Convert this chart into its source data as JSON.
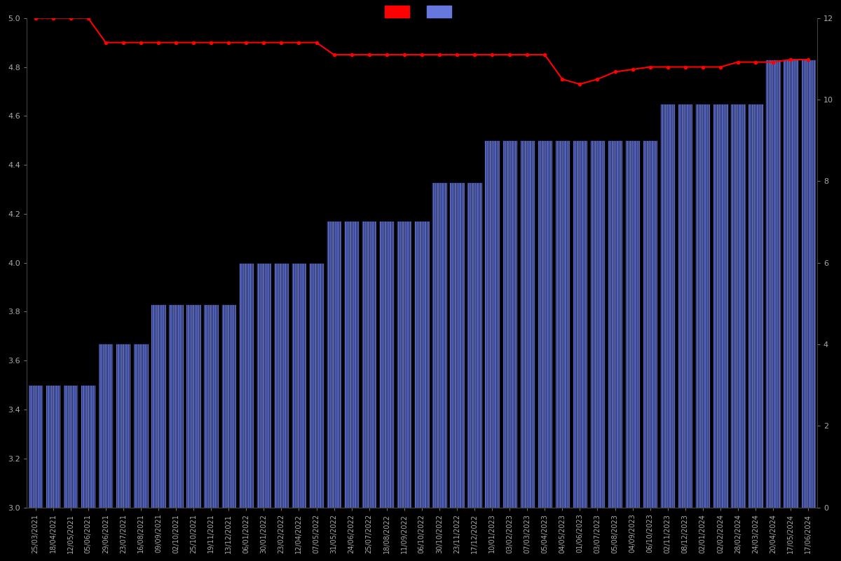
{
  "background_color": "#000000",
  "bar_color": "#6677dd",
  "bar_edgecolor": "#000000",
  "bar_hatch": "|||||||",
  "hatch_color": "#ffffff",
  "line_color": "#ff0000",
  "line_marker": "o",
  "line_markersize": 3,
  "line_linewidth": 1.5,
  "left_ylim": [
    3.0,
    5.0
  ],
  "right_ylim": [
    0,
    12
  ],
  "left_yticks": [
    3.0,
    3.2,
    3.4,
    3.6,
    3.8,
    4.0,
    4.2,
    4.4,
    4.6,
    4.8,
    5.0
  ],
  "right_yticks": [
    0,
    2,
    4,
    6,
    8,
    10,
    12
  ],
  "tick_color": "#aaaaaa",
  "tick_fontsize": 8,
  "dates": [
    "25/03/2021",
    "18/04/2021",
    "12/05/2021",
    "05/06/2021",
    "29/06/2021",
    "23/07/2021",
    "16/08/2021",
    "09/09/2021",
    "02/10/2021",
    "25/10/2021",
    "19/11/2021",
    "13/12/2021",
    "06/01/2022",
    "30/01/2022",
    "23/02/2022",
    "12/04/2022",
    "07/05/2022",
    "31/05/2022",
    "24/06/2022",
    "25/07/2022",
    "18/08/2022",
    "11/09/2022",
    "06/10/2022",
    "30/10/2022",
    "23/11/2022",
    "17/12/2022",
    "10/01/2023",
    "03/02/2023",
    "07/03/2023",
    "05/04/2023",
    "04/05/2023",
    "01/06/2023",
    "03/07/2023",
    "05/08/2023",
    "04/09/2023",
    "06/10/2023",
    "02/11/2023",
    "08/12/2023",
    "02/01/2024",
    "02/02/2024",
    "28/02/2024",
    "24/03/2024",
    "20/04/2024",
    "17/05/2024",
    "17/06/2024"
  ],
  "avg_ratings": [
    5.0,
    5.0,
    5.0,
    5.0,
    4.9,
    4.9,
    4.9,
    4.9,
    4.9,
    4.9,
    4.9,
    4.9,
    4.9,
    4.9,
    4.9,
    4.9,
    4.9,
    4.85,
    4.85,
    4.85,
    4.85,
    4.85,
    4.85,
    4.85,
    4.85,
    4.85,
    4.85,
    4.85,
    4.85,
    4.85,
    4.75,
    4.73,
    4.75,
    4.78,
    4.79,
    4.8,
    4.8,
    4.8,
    4.8,
    4.8,
    4.82,
    4.82,
    4.82,
    4.83,
    4.83
  ],
  "bar_heights": [
    3.5,
    3.5,
    3.5,
    3.5,
    3.67,
    3.67,
    3.67,
    3.83,
    3.83,
    3.83,
    3.83,
    3.83,
    4.0,
    4.0,
    4.0,
    4.0,
    4.0,
    4.17,
    4.17,
    4.17,
    4.17,
    4.17,
    4.17,
    4.33,
    4.33,
    4.33,
    4.5,
    4.5,
    4.5,
    4.5,
    4.5,
    4.5,
    4.5,
    4.5,
    4.5,
    4.5,
    4.65,
    4.65,
    4.65,
    4.65,
    4.65,
    4.65,
    4.83,
    4.83,
    4.83
  ],
  "legend_colors": [
    "#ff0000",
    "#6677dd"
  ],
  "legend_handlelength": 2.5,
  "legend_handleheight": 1.5
}
